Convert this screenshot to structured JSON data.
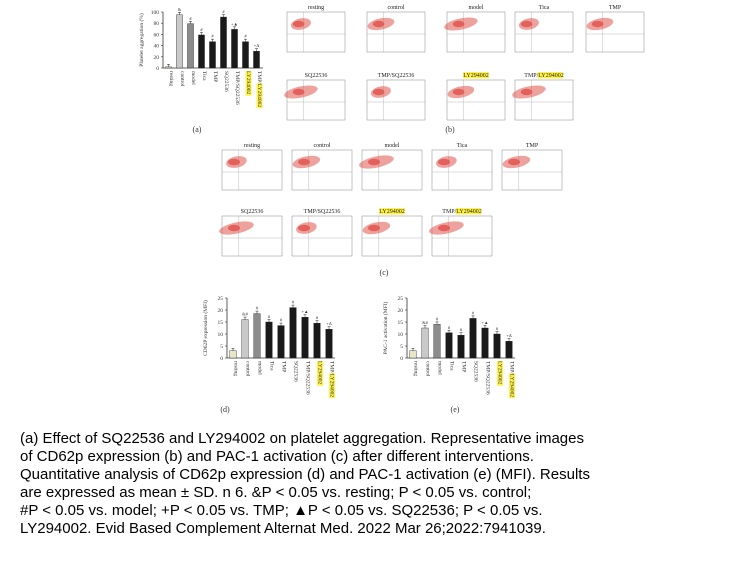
{
  "colors": {
    "resting_bar": "#e8e6c4",
    "control_bar": "#c9c9c9",
    "model_bar": "#8c8c8c",
    "treatment_bar": "#1a1a1a",
    "dot": "#e0554f",
    "highlight": "#fff24a"
  },
  "panels": {
    "a_label": "(a)",
    "b_label": "(b)",
    "c_label": "(c)",
    "d_label": "(d)",
    "e_label": "(e)"
  },
  "flow_b": {
    "titles": [
      "resting",
      "control",
      "model",
      "Tica",
      "TMP",
      "SQ22536",
      "TMP/SQ22536",
      "LY294002",
      "TMP/LY294002"
    ]
  },
  "flow_c": {
    "titles": [
      "resting",
      "control",
      "model",
      "Tica",
      "TMP",
      "SQ22536",
      "TMP/SQ22536",
      "LY294002",
      "TMP/LY294002"
    ]
  },
  "chart_data": [
    {
      "type": "bar",
      "panel": "a",
      "title": "",
      "ylabel": "Platelet aggregation (%)",
      "ylim": [
        0,
        100
      ],
      "yticks": [
        "0",
        "20",
        "40",
        "60",
        "80",
        "100"
      ],
      "categories": [
        "resting",
        "control",
        "model",
        "Tica",
        "TMP",
        "SQ22536",
        "TMP/SQ22536",
        "LY294002",
        "TMP/LY294002"
      ],
      "values": [
        2,
        95,
        79,
        59,
        47,
        91,
        69,
        47,
        30
      ],
      "annotations": [
        "",
        "&",
        "#",
        "#",
        "#",
        "#",
        "+▲",
        "#",
        "+Δ"
      ]
    },
    {
      "type": "bar",
      "panel": "d",
      "title": "",
      "ylabel": "CD62P expression (MFI)",
      "ylim": [
        0,
        25
      ],
      "yticks": [
        "0",
        "5",
        "10",
        "15",
        "20",
        "25"
      ],
      "categories": [
        "resting",
        "control",
        "model",
        "Tica",
        "TMP",
        "SQ22536",
        "TMP/SQ22536",
        "LY294002",
        "TMP/LY294002"
      ],
      "values": [
        3,
        16,
        18.5,
        15,
        13.5,
        21,
        17,
        14.5,
        12
      ],
      "annotations": [
        "",
        "&#",
        "#",
        "#",
        "#",
        "#",
        "+▲",
        "#",
        "+Δ"
      ]
    },
    {
      "type": "bar",
      "panel": "e",
      "title": "",
      "ylabel": "PAC-1 activation (MFI)",
      "ylim": [
        0,
        25
      ],
      "yticks": [
        "0",
        "5",
        "10",
        "15",
        "20",
        "25"
      ],
      "categories": [
        "resting",
        "control",
        "model",
        "Tica",
        "TMP",
        "SQ22536",
        "TMP/SQ22536",
        "LY294002",
        "TMP/LY294002"
      ],
      "values": [
        3,
        12.5,
        14,
        10.5,
        9.5,
        16.5,
        12.5,
        10,
        7
      ],
      "annotations": [
        "",
        "&#",
        "#",
        "#",
        "#",
        "#",
        "+▲",
        "#",
        "+Δ"
      ]
    }
  ],
  "caption": {
    "line1": "(a) Effect of SQ22536 and LY294002 on platelet aggregation. Representative images",
    "line2": "of CD62p expression (b) and PAC-1 activation (c) after different interventions.",
    "line3": "Quantitative analysis of CD62p expression (d) and PAC-1 activation (e) (MFI). Results",
    "line4": "are expressed as mean ± SD. n   6. &P < 0.05 vs. resting;  P < 0.05 vs. control;",
    "line5": "#P < 0.05 vs. model; +P < 0.05 vs. TMP; ▲P < 0.05 vs. SQ22536;  P < 0.05 vs.",
    "line6": "LY294002. Evid Based Complement Alternat Med. 2022 Mar 26;2022:7941039."
  }
}
